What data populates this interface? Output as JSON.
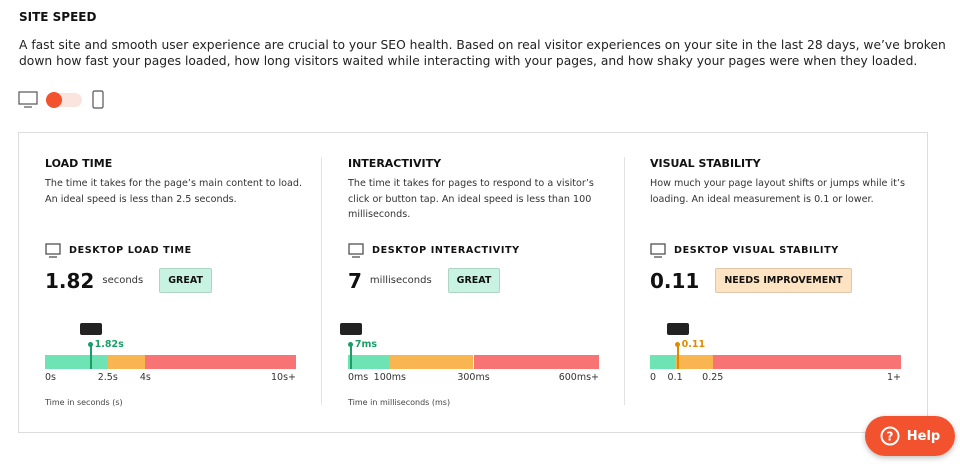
{
  "header": {
    "title": "SITE SPEED",
    "description": "A fast site and smooth user experience are crucial to your SEO health. Based on real visitor experiences on your site in the last 28 days, we’ve broken down how fast your pages loaded, how long visitors waited while interacting with your pages, and how shaky your pages were when they loaded."
  },
  "cards": [
    {
      "title": "LOAD TIME",
      "description": "The time it takes for the page’s main content to load. An ideal speed is less than 2.5 seconds.",
      "metric_label": "DESKTOP LOAD TIME",
      "value": 1.82,
      "unit": "seconds",
      "badge": "GREAT",
      "marker_label": "1.82s",
      "color": "#1a9e68",
      "badge_color": "#c8f2e1",
      "ticks": [
        {
          "value": 0,
          "label": "0s"
        },
        {
          "value": 2.5,
          "label": "2.5s"
        },
        {
          "value": 4,
          "label": "4s"
        },
        {
          "value": 10,
          "label": "10s+"
        }
      ],
      "axis_note": "Time in seconds (s)"
    },
    {
      "title": "INTERACTIVITY",
      "description": "The time it takes for pages to respond to a visitor’s click or button tap. An ideal speed is less than 100 milliseconds.",
      "metric_label": "DESKTOP INTERACTIVITY",
      "value": 7,
      "unit": "milliseconds",
      "badge": "GREAT",
      "marker_label": "7ms",
      "color": "#1a9e68",
      "badge_color": "#c8f2e1",
      "ticks": [
        {
          "value": 0,
          "label": "0ms"
        },
        {
          "value": 100,
          "label": "100ms"
        },
        {
          "value": 300,
          "label": "300ms"
        },
        {
          "value": 600,
          "label": "600ms+"
        }
      ],
      "axis_note": "Time in milliseconds (ms)"
    },
    {
      "title": "VISUAL STABILITY",
      "description": "How much your page layout shifts or jumps while it’s loading. An ideal measurement is 0.1 or lower.",
      "metric_label": "DESKTOP VISUAL STABILITY",
      "value": 0.11,
      "badge": "NEEDS IMPROVEMENT",
      "marker_label": "0.11",
      "color": "#e08a00",
      "badge_color": "#fde3c2",
      "ticks": [
        0,
        0.1,
        0.25,
        {
          "value": 1,
          "label": "1+"
        }
      ]
    }
  ],
  "help": "Help"
}
